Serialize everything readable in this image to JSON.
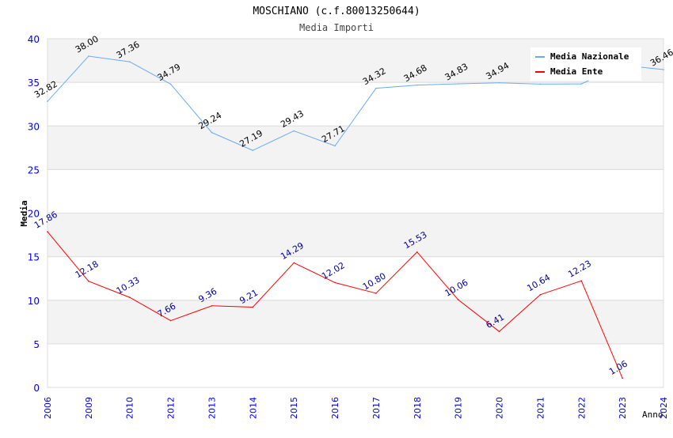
{
  "chart_data": {
    "type": "line",
    "title": "MOSCHIANO (c.f.80013250644)",
    "subtitle": "Media Importi",
    "xlabel": "Anno",
    "ylabel": "Media",
    "ylim": [
      0,
      40
    ],
    "yticks": [
      "0",
      "5",
      "10",
      "15",
      "20",
      "25",
      "30",
      "35",
      "40"
    ],
    "categories": [
      "2006",
      "2009",
      "2010",
      "2012",
      "2013",
      "2014",
      "2015",
      "2016",
      "2017",
      "2018",
      "2019",
      "2020",
      "2021",
      "2022",
      "2023",
      "2024"
    ],
    "series": [
      {
        "name": "Media Nazionale",
        "color": "#6aaaf0",
        "label_color": "#000000",
        "values": [
          32.82,
          38.0,
          37.36,
          34.79,
          29.24,
          27.19,
          29.43,
          27.71,
          34.32,
          34.68,
          34.83,
          34.94,
          34.8,
          34.82,
          36.96,
          36.46
        ],
        "labels": [
          "32.82",
          "38.00",
          "37.36",
          "34.79",
          "29.24",
          "27.19",
          "29.43",
          "27.71",
          "34.32",
          "34.68",
          "34.83",
          "34.94",
          "",
          "",
          "",
          "36.46"
        ]
      },
      {
        "name": "Media Ente",
        "color": "#ff0000",
        "label_color": "#000099",
        "values": [
          17.86,
          12.18,
          10.33,
          7.66,
          9.36,
          9.21,
          14.29,
          12.02,
          10.8,
          15.53,
          10.06,
          6.41,
          10.64,
          12.23,
          1.06,
          null
        ],
        "labels": [
          "17.86",
          "12.18",
          "10.33",
          "7.66",
          "9.36",
          "9.21",
          "14.29",
          "12.02",
          "10.80",
          "15.53",
          "10.06",
          "6.41",
          "10.64",
          "12.23",
          "1.06",
          ""
        ]
      }
    ],
    "legend": "top-right",
    "grid": true
  }
}
